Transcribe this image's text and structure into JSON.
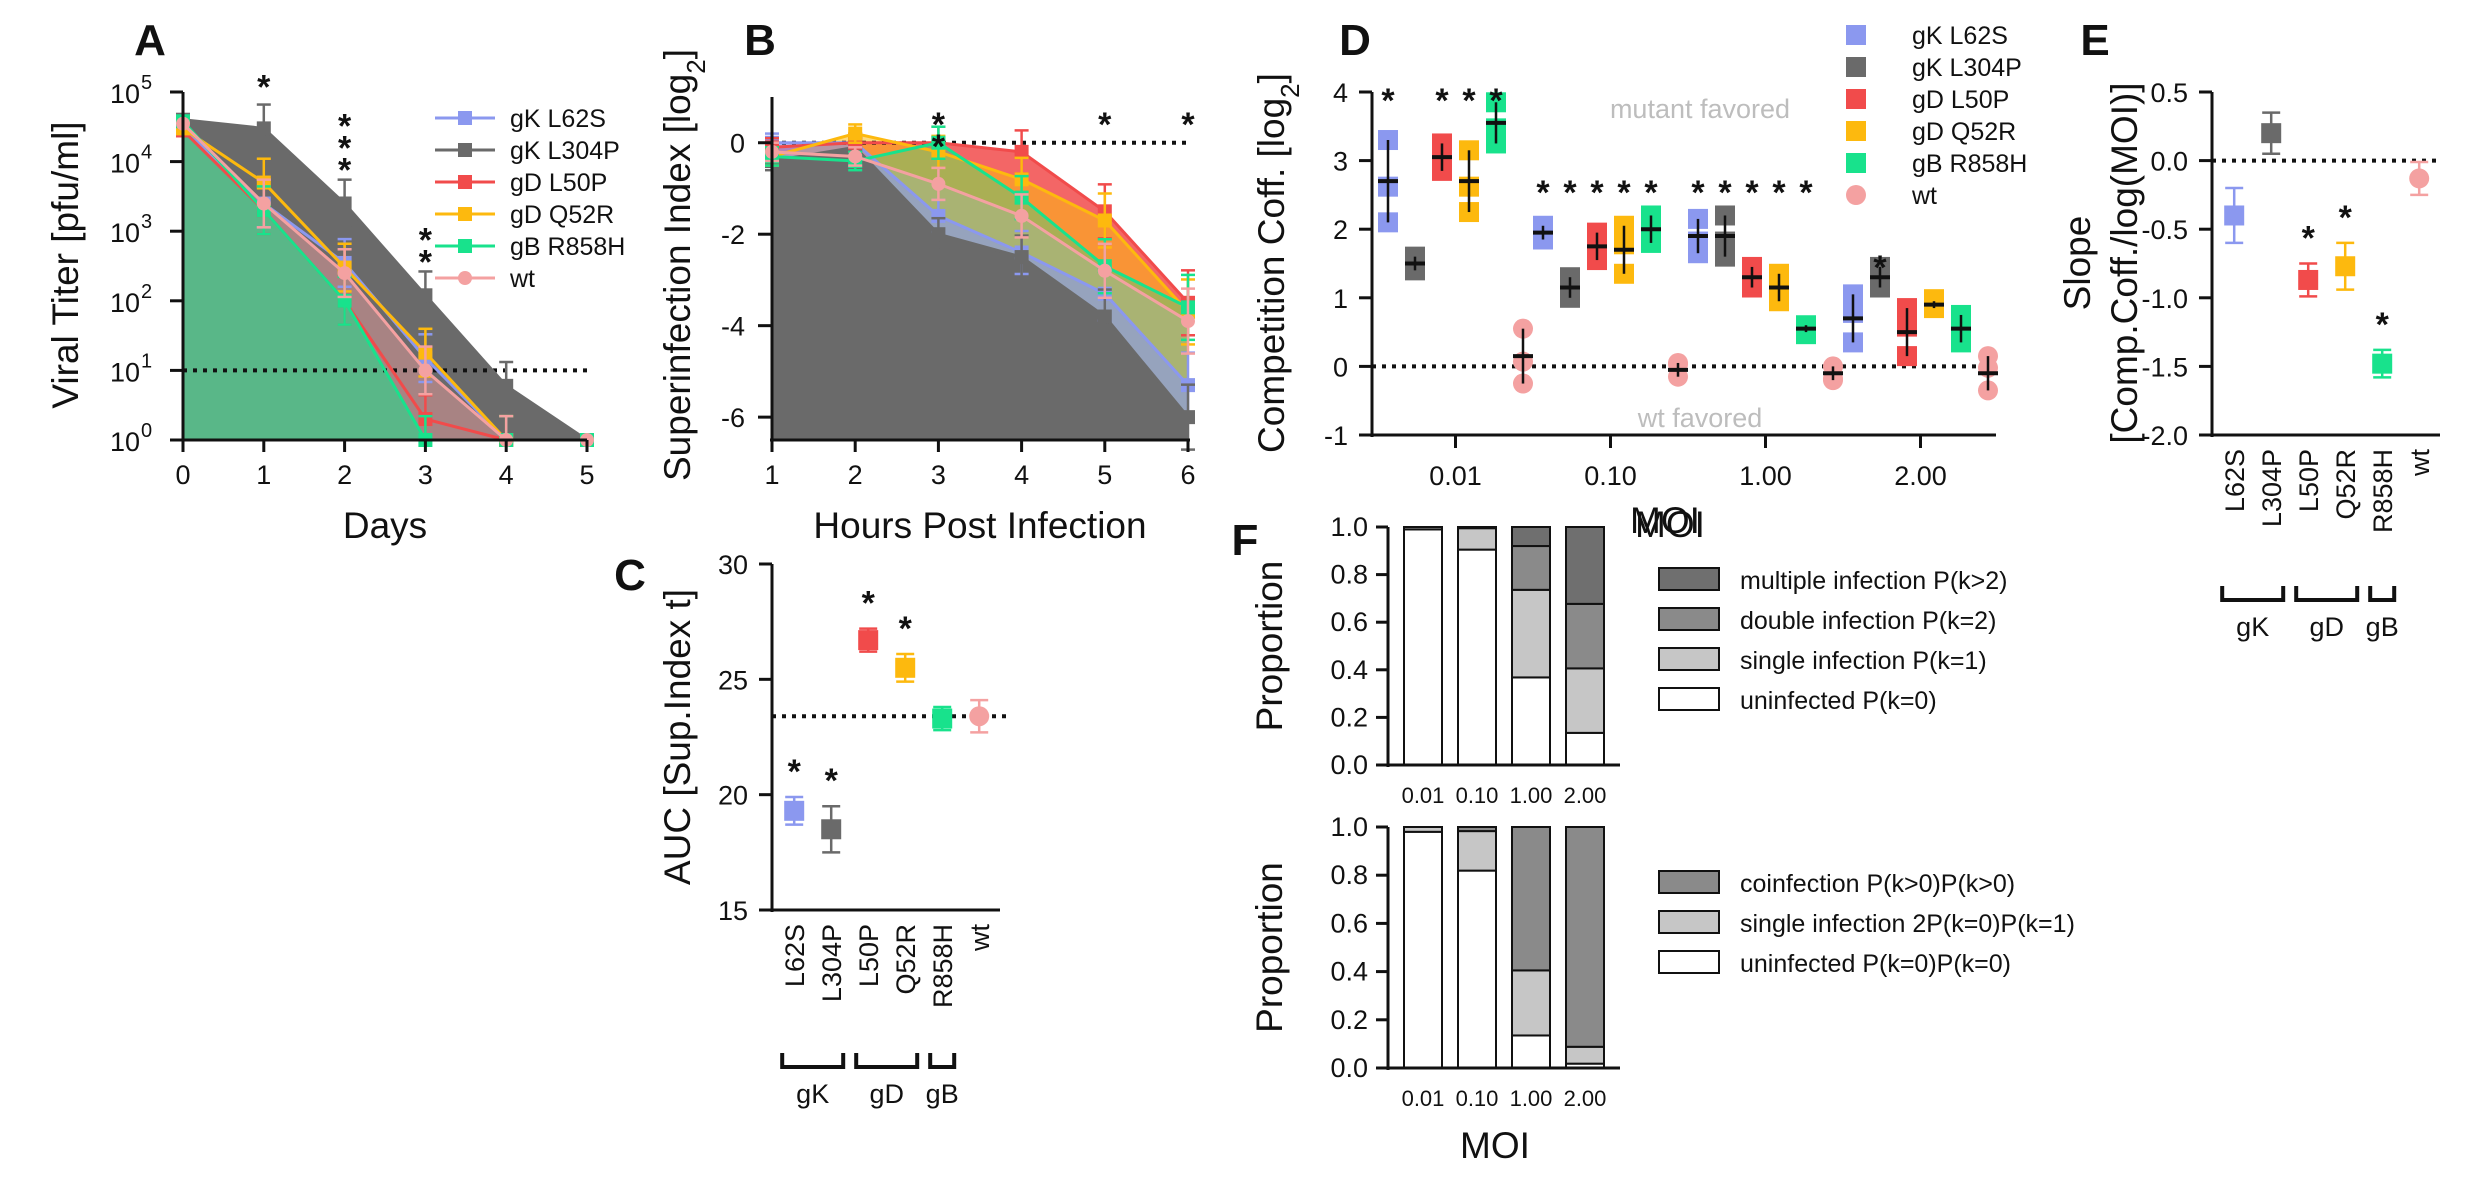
{
  "colors": {
    "gK L62S": "#8b98ef",
    "gK L304P": "#6a6a6a",
    "gD L50P": "#f14b4b",
    "gD Q52R": "#fdb90e",
    "gB R858H": "#18e28c",
    "wt": "#f4a1a1",
    "fill_light": "#ffffff",
    "fill_mid": "#c6c6c6",
    "fill_dark": "#808080"
  },
  "chart_data": [
    {
      "id": "A",
      "panel": "A",
      "type": "line",
      "xlabel": "Days",
      "ylabel": "Viral Titer [pfu/ml]",
      "x": [
        0,
        1,
        2,
        3,
        4,
        5
      ],
      "xlim": [
        0,
        5
      ],
      "yscale": "log",
      "ylim": [
        1,
        100000
      ],
      "xticks": [
        "0",
        "1",
        "2",
        "3",
        "4",
        "5"
      ],
      "yticks": [
        {
          "base": "10",
          "exp": "0"
        },
        {
          "base": "10",
          "exp": "1"
        },
        {
          "base": "10",
          "exp": "2"
        },
        {
          "base": "10",
          "exp": "3"
        },
        {
          "base": "10",
          "exp": "4"
        },
        {
          "base": "10",
          "exp": "5"
        }
      ],
      "reference_line": 10,
      "series": [
        {
          "name": "gK L62S",
          "values": [
            30000,
            2500,
            350,
            15,
            1,
            1
          ]
        },
        {
          "name": "gK L304P",
          "values": [
            40000,
            30000,
            2500,
            120,
            6,
            1
          ]
        },
        {
          "name": "gD L50P",
          "values": [
            28000,
            2000,
            100,
            2,
            1,
            1
          ]
        },
        {
          "name": "gD Q52R",
          "values": [
            30000,
            5000,
            300,
            18,
            1,
            1
          ]
        },
        {
          "name": "gB R858H",
          "values": [
            38000,
            2000,
            100,
            1,
            1,
            1
          ]
        },
        {
          "name": "wt",
          "values": [
            35000,
            2500,
            250,
            10,
            1,
            1
          ]
        }
      ],
      "significance": [
        {
          "x": 1,
          "series": [
            "gK L304P"
          ]
        },
        {
          "x": 2,
          "series": [
            "gK L304P",
            "gD L50P",
            "gB R858H"
          ]
        },
        {
          "x": 3,
          "series": [
            "gK L304P",
            "gB R858H"
          ]
        }
      ],
      "legend": [
        "gK L62S",
        "gK L304P",
        "gD L50P",
        "gD Q52R",
        "gB R858H",
        "wt"
      ]
    },
    {
      "id": "B",
      "panel": "B",
      "type": "line",
      "xlabel": "Hours Post Infection",
      "ylabel": "Superinfection Index [log",
      "ylabel_sub": "2",
      "ylabel_end": "]",
      "x": [
        1,
        2,
        3,
        4,
        5,
        6
      ],
      "xlim": [
        1,
        6
      ],
      "ylim": [
        -6.5,
        1
      ],
      "xticks": [
        "1",
        "2",
        "3",
        "4",
        "5",
        "6"
      ],
      "yticks": [
        "0",
        "-2",
        "-4",
        "-6"
      ],
      "reference_line": 0,
      "series": [
        {
          "name": "gK L62S",
          "values": [
            0,
            0,
            -1.6,
            -2.4,
            -3.3,
            -5.3
          ]
        },
        {
          "name": "gK L304P",
          "values": [
            -0.4,
            -0.1,
            -2.0,
            -2.5,
            -3.8,
            -6.0
          ]
        },
        {
          "name": "gD L50P",
          "values": [
            -0.1,
            0,
            0,
            -0.2,
            -1.5,
            -3.5
          ]
        },
        {
          "name": "gD Q52R",
          "values": [
            -0.3,
            0.2,
            -0.2,
            -0.8,
            -1.7,
            -3.7
          ]
        },
        {
          "name": "gB R858H",
          "values": [
            -0.3,
            -0.4,
            0,
            -1.2,
            -2.7,
            -3.6
          ]
        },
        {
          "name": "wt",
          "values": [
            -0.2,
            -0.3,
            -0.9,
            -1.6,
            -2.8,
            -3.9
          ]
        }
      ],
      "significance": [
        {
          "x": 3,
          "series": [
            "gK L304P",
            "gK L62S"
          ]
        },
        {
          "x": 5,
          "series": [
            "gD L50P"
          ]
        },
        {
          "x": 6,
          "series": [
            "gK L304P"
          ]
        }
      ]
    },
    {
      "id": "C",
      "panel": "C",
      "type": "scatter",
      "ylabel": "AUC [Sup.Index t]",
      "ylim": [
        15,
        30
      ],
      "yticks": [
        "15",
        "20",
        "25",
        "30"
      ],
      "categories": [
        "L62S",
        "L304P",
        "L50P",
        "Q52R",
        "R858H",
        "wt"
      ],
      "groups": [
        {
          "label": "gK",
          "members": [
            0,
            1
          ]
        },
        {
          "label": "gD",
          "members": [
            2,
            3
          ]
        },
        {
          "label": "gB",
          "members": [
            4
          ]
        }
      ],
      "series_names": [
        "gK L62S",
        "gK L304P",
        "gD L50P",
        "gD Q52R",
        "gB R858H",
        "wt"
      ],
      "values": [
        19.3,
        18.5,
        26.7,
        25.5,
        23.3,
        23.4
      ],
      "errors": [
        0.6,
        1.0,
        0.5,
        0.6,
        0.5,
        0.7
      ],
      "reference_line": 23.4,
      "significant": [
        true,
        true,
        true,
        true,
        false,
        false
      ]
    },
    {
      "id": "D",
      "panel": "D",
      "type": "scatter",
      "xlabel": "MOI",
      "ylabel": "Competition Coff. [log",
      "ylabel_sub": "2",
      "ylabel_end": "]",
      "ylim": [
        -1,
        4
      ],
      "yticks": [
        "-1",
        "0",
        "1",
        "2",
        "3",
        "4"
      ],
      "categories": [
        "0.01",
        "0.10",
        "1.00",
        "2.00"
      ],
      "reference_line": 0,
      "annotations": [
        "mutant favored",
        "wt favored"
      ],
      "series": [
        {
          "name": "gK L62S",
          "values": [
            2.7,
            1.95,
            1.9,
            0.7
          ],
          "errors": [
            0.6,
            0.1,
            0.25,
            0.35
          ]
        },
        {
          "name": "gK L304P",
          "values": [
            1.5,
            1.15,
            1.9,
            1.3
          ],
          "errors": [
            0.1,
            0.15,
            0.3,
            0.15
          ]
        },
        {
          "name": "gD L50P",
          "values": [
            3.05,
            1.75,
            1.3,
            0.5
          ],
          "errors": [
            0.2,
            0.2,
            0.15,
            0.35
          ]
        },
        {
          "name": "gD Q52R",
          "values": [
            2.7,
            1.7,
            1.15,
            0.9
          ],
          "errors": [
            0.45,
            0.35,
            0.2,
            0.05
          ]
        },
        {
          "name": "gB R858H",
          "values": [
            3.55,
            2.0,
            0.55,
            0.55
          ],
          "errors": [
            0.3,
            0.2,
            0.05,
            0.2
          ]
        },
        {
          "name": "wt",
          "values": [
            0.15,
            -0.05,
            -0.1,
            -0.1
          ],
          "errors": [
            0.4,
            0.1,
            0.1,
            0.25
          ]
        }
      ],
      "significant": [
        [
          true,
          true,
          true,
          false
        ],
        [
          false,
          true,
          true,
          true
        ],
        [
          true,
          true,
          true,
          false
        ],
        [
          true,
          true,
          true,
          false
        ],
        [
          true,
          true,
          true,
          false
        ],
        [
          false,
          false,
          false,
          false
        ]
      ],
      "legend": [
        "gK L62S",
        "gK L304P",
        "gD L50P",
        "gD Q52R",
        "gB R858H",
        "wt"
      ]
    },
    {
      "id": "E",
      "panel": "E",
      "type": "scatter",
      "ylabel": "Slope",
      "ylabel2": "[Comp.Coff./log(MOI)]",
      "ylim": [
        -2,
        0.5
      ],
      "yticks": [
        "0.5",
        "0.0",
        "-0.5",
        "-1.0",
        "-1.5",
        "-2.0"
      ],
      "categories": [
        "L62S",
        "L304P",
        "L50P",
        "Q52R",
        "R858H",
        "wt"
      ],
      "groups": [
        {
          "label": "gK",
          "members": [
            0,
            1
          ]
        },
        {
          "label": "gD",
          "members": [
            2,
            3
          ]
        },
        {
          "label": "gB",
          "members": [
            4
          ]
        }
      ],
      "series_names": [
        "gK L62S",
        "gK L304P",
        "gD L50P",
        "gD Q52R",
        "gB R858H",
        "wt"
      ],
      "values": [
        -0.4,
        0.2,
        -0.87,
        -0.77,
        -1.48,
        -0.13
      ],
      "errors": [
        0.2,
        0.15,
        0.12,
        0.17,
        0.1,
        0.12
      ],
      "reference_line": 0,
      "significant": [
        false,
        false,
        true,
        true,
        true,
        false
      ]
    },
    {
      "id": "F1",
      "panel": "F",
      "type": "bar",
      "stacked": true,
      "ylabel": "Proportion",
      "ylim": [
        0,
        1
      ],
      "yticks": [
        "0.0",
        "0.2",
        "0.4",
        "0.6",
        "0.8",
        "1.0"
      ],
      "categories": [
        "0.01",
        "0.10",
        "1.00",
        "2.00"
      ],
      "categories_title": "MOI",
      "series": [
        {
          "name": "uninfected P(k=0)",
          "shade": "light",
          "values": [
            0.99,
            0.905,
            0.368,
            0.135
          ]
        },
        {
          "name": "single infection P(k=1)",
          "shade": "mid",
          "values": [
            0.01,
            0.09,
            0.368,
            0.271
          ]
        },
        {
          "name": "double infection P(k=2)",
          "shade": "dark",
          "values": [
            0,
            0.005,
            0.184,
            0.271
          ]
        },
        {
          "name": "multiple infection P(k>2)",
          "shade": "darker",
          "values": [
            0,
            0,
            0.08,
            0.323
          ]
        }
      ]
    },
    {
      "id": "F2",
      "panel": "F",
      "type": "bar",
      "stacked": true,
      "xlabel": "MOI",
      "ylabel": "Proportion",
      "ylim": [
        0,
        1
      ],
      "yticks": [
        "0.0",
        "0.2",
        "0.4",
        "0.6",
        "0.8",
        "1.0"
      ],
      "categories": [
        "0.01",
        "0.10",
        "1.00",
        "2.00"
      ],
      "series": [
        {
          "name": "uninfected P(k=0)P(k=0)",
          "shade": "light",
          "values": [
            0.98,
            0.819,
            0.135,
            0.018
          ]
        },
        {
          "name": "single infection 2P(k=0)P(k=1)",
          "shade": "mid",
          "values": [
            0.02,
            0.164,
            0.27,
            0.07
          ]
        },
        {
          "name": "coinfection P(k>0)P(k>0)",
          "shade": "dark",
          "values": [
            0,
            0.017,
            0.595,
            0.912
          ]
        }
      ]
    }
  ]
}
